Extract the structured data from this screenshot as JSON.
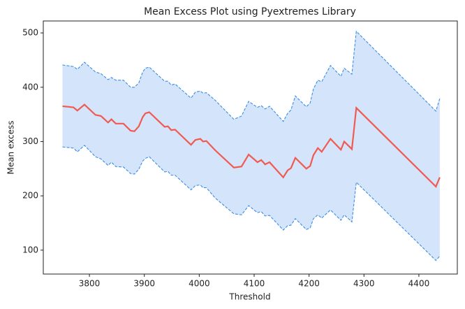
{
  "chart_data": {
    "type": "line",
    "title": "Mean Excess Plot using Pyextremes Library",
    "x_label": "Threshold",
    "y_label": "Mean excess",
    "x": [
      3751,
      3771,
      3778,
      3791,
      3811,
      3821,
      3834,
      3840,
      3848,
      3862,
      3875,
      3882,
      3890,
      3897,
      3902,
      3909,
      3937,
      3943,
      3949,
      3956,
      3985,
      3993,
      4002,
      4007,
      4013,
      4029,
      4063,
      4077,
      4090,
      4106,
      4113,
      4120,
      4128,
      4153,
      4161,
      4167,
      4175,
      4195,
      4202,
      4208,
      4216,
      4223,
      4239,
      4258,
      4264,
      4278,
      4286,
      4431,
      4438
    ],
    "series": [
      {
        "color": "#f05a50",
        "style": "solid",
        "values": [
          365,
          363,
          357,
          368,
          349,
          347,
          335,
          341,
          333,
          333,
          320,
          319,
          328,
          345,
          352,
          354,
          327,
          328,
          321,
          322,
          294,
          303,
          305,
          300,
          301,
          284,
          252,
          254,
          276,
          262,
          266,
          258,
          262,
          234,
          247,
          251,
          270,
          250,
          255,
          275,
          288,
          281,
          305,
          285,
          300,
          286,
          362,
          217,
          234
        ]
      },
      {
        "color": "#3a8ee6",
        "style": "dashed",
        "values": [
          441,
          438,
          433,
          446,
          428,
          425,
          414,
          418,
          413,
          413,
          400,
          400,
          408,
          428,
          435,
          437,
          411,
          411,
          404,
          406,
          380,
          391,
          393,
          389,
          390,
          376,
          341,
          347,
          374,
          363,
          366,
          360,
          365,
          337,
          352,
          358,
          384,
          364,
          371,
          397,
          413,
          410,
          440,
          420,
          435,
          424,
          503,
          356,
          379
        ]
      },
      {
        "color": "#3a8ee6",
        "style": "dashed",
        "values": [
          290,
          288,
          281,
          293,
          272,
          268,
          256,
          262,
          254,
          253,
          241,
          240,
          249,
          264,
          269,
          272,
          244,
          245,
          238,
          238,
          211,
          219,
          220,
          215,
          215,
          196,
          167,
          165,
          182,
          169,
          171,
          163,
          164,
          137,
          145,
          146,
          158,
          138,
          141,
          158,
          165,
          159,
          174,
          155,
          165,
          152,
          225,
          81,
          89
        ]
      }
    ],
    "band_color": "#d4e4fb",
    "xlim": [
      3716,
      4470
    ],
    "ylim": [
      56,
      522
    ],
    "xticks": [
      3800,
      3900,
      4000,
      4100,
      4200,
      4300,
      4400
    ],
    "yticks": [
      100,
      200,
      300,
      400,
      500
    ]
  }
}
